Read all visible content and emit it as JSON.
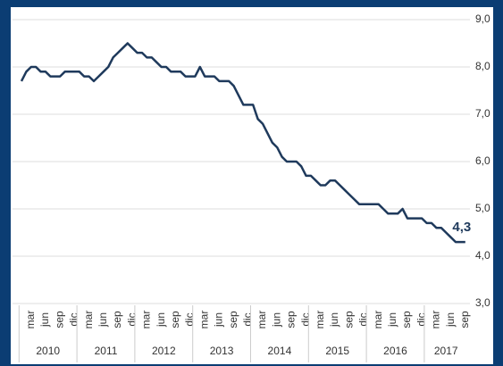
{
  "chart_data": {
    "type": "line",
    "categories": [
      null,
      null,
      "mar",
      null,
      null,
      "jun",
      null,
      null,
      "sep",
      null,
      null,
      "dic",
      null,
      null,
      "mar",
      null,
      null,
      "jun",
      null,
      null,
      "sep",
      null,
      null,
      "dic",
      null,
      null,
      "mar",
      null,
      null,
      "jun",
      null,
      null,
      "sep",
      null,
      null,
      "dic",
      null,
      null,
      "mar",
      null,
      null,
      "jun",
      null,
      null,
      "sep",
      null,
      null,
      "dic",
      null,
      null,
      "mar",
      null,
      null,
      "jun",
      null,
      null,
      "sep",
      null,
      null,
      "dic",
      null,
      null,
      "mar",
      null,
      null,
      "jun",
      null,
      null,
      "sep",
      null,
      null,
      "dic",
      null,
      null,
      "mar",
      null,
      null,
      "jun",
      null,
      null,
      "sep",
      null,
      null,
      "dic",
      null,
      null,
      "mar",
      null,
      null,
      "jun",
      null,
      null,
      "sep"
    ],
    "years": [
      "2010",
      "2011",
      "2012",
      "2013",
      "2014",
      "2015",
      "2016",
      "2017"
    ],
    "values": [
      7.7,
      7.9,
      8.0,
      8.0,
      7.9,
      7.9,
      7.8,
      7.8,
      7.8,
      7.9,
      7.9,
      7.9,
      7.9,
      7.8,
      7.8,
      7.7,
      7.8,
      7.9,
      8.0,
      8.2,
      8.3,
      8.4,
      8.5,
      8.4,
      8.3,
      8.3,
      8.2,
      8.2,
      8.1,
      8.0,
      8.0,
      7.9,
      7.9,
      7.9,
      7.8,
      7.8,
      7.8,
      8.0,
      7.8,
      7.8,
      7.8,
      7.7,
      7.7,
      7.7,
      7.6,
      7.4,
      7.2,
      7.2,
      7.2,
      6.9,
      6.8,
      6.6,
      6.4,
      6.3,
      6.1,
      6.0,
      6.0,
      6.0,
      5.9,
      5.7,
      5.7,
      5.6,
      5.5,
      5.5,
      5.6,
      5.6,
      5.5,
      5.4,
      5.3,
      5.2,
      5.1,
      5.1,
      5.1,
      5.1,
      5.1,
      5.0,
      4.9,
      4.9,
      4.9,
      5.0,
      4.8,
      4.8,
      4.8,
      4.8,
      4.7,
      4.7,
      4.6,
      4.6,
      4.5,
      4.4,
      4.3,
      4.3,
      4.3
    ],
    "value_labels": [
      null,
      null,
      null,
      null,
      null,
      null,
      null,
      null,
      null,
      null,
      null,
      null,
      null,
      null,
      null,
      null,
      null,
      null,
      null,
      null,
      null,
      null,
      null,
      null,
      null,
      null,
      null,
      null,
      null,
      null,
      null,
      null,
      null,
      null,
      null,
      null,
      null,
      null,
      null,
      null,
      null,
      null,
      null,
      null,
      null,
      null,
      null,
      null,
      null,
      null,
      null,
      null,
      null,
      null,
      null,
      null,
      null,
      null,
      null,
      null,
      null,
      null,
      null,
      null,
      null,
      null,
      null,
      null,
      null,
      null,
      null,
      null,
      null,
      null,
      null,
      null,
      null,
      null,
      null,
      null,
      null,
      null,
      null,
      null,
      null,
      null,
      null,
      null,
      null,
      null,
      null,
      null,
      "4,3"
    ],
    "color": "#1f3a5c",
    "ylim": [
      3,
      9
    ],
    "yticks": [
      {
        "value": 3,
        "label": "3,0"
      },
      {
        "value": 4,
        "label": "4,0"
      },
      {
        "value": 5,
        "label": "5,0"
      },
      {
        "value": 6,
        "label": "6,0"
      },
      {
        "value": 7,
        "label": "7,0"
      },
      {
        "value": 8,
        "label": "8,0"
      },
      {
        "value": 9,
        "label": "9,0"
      }
    ],
    "grid": true
  }
}
